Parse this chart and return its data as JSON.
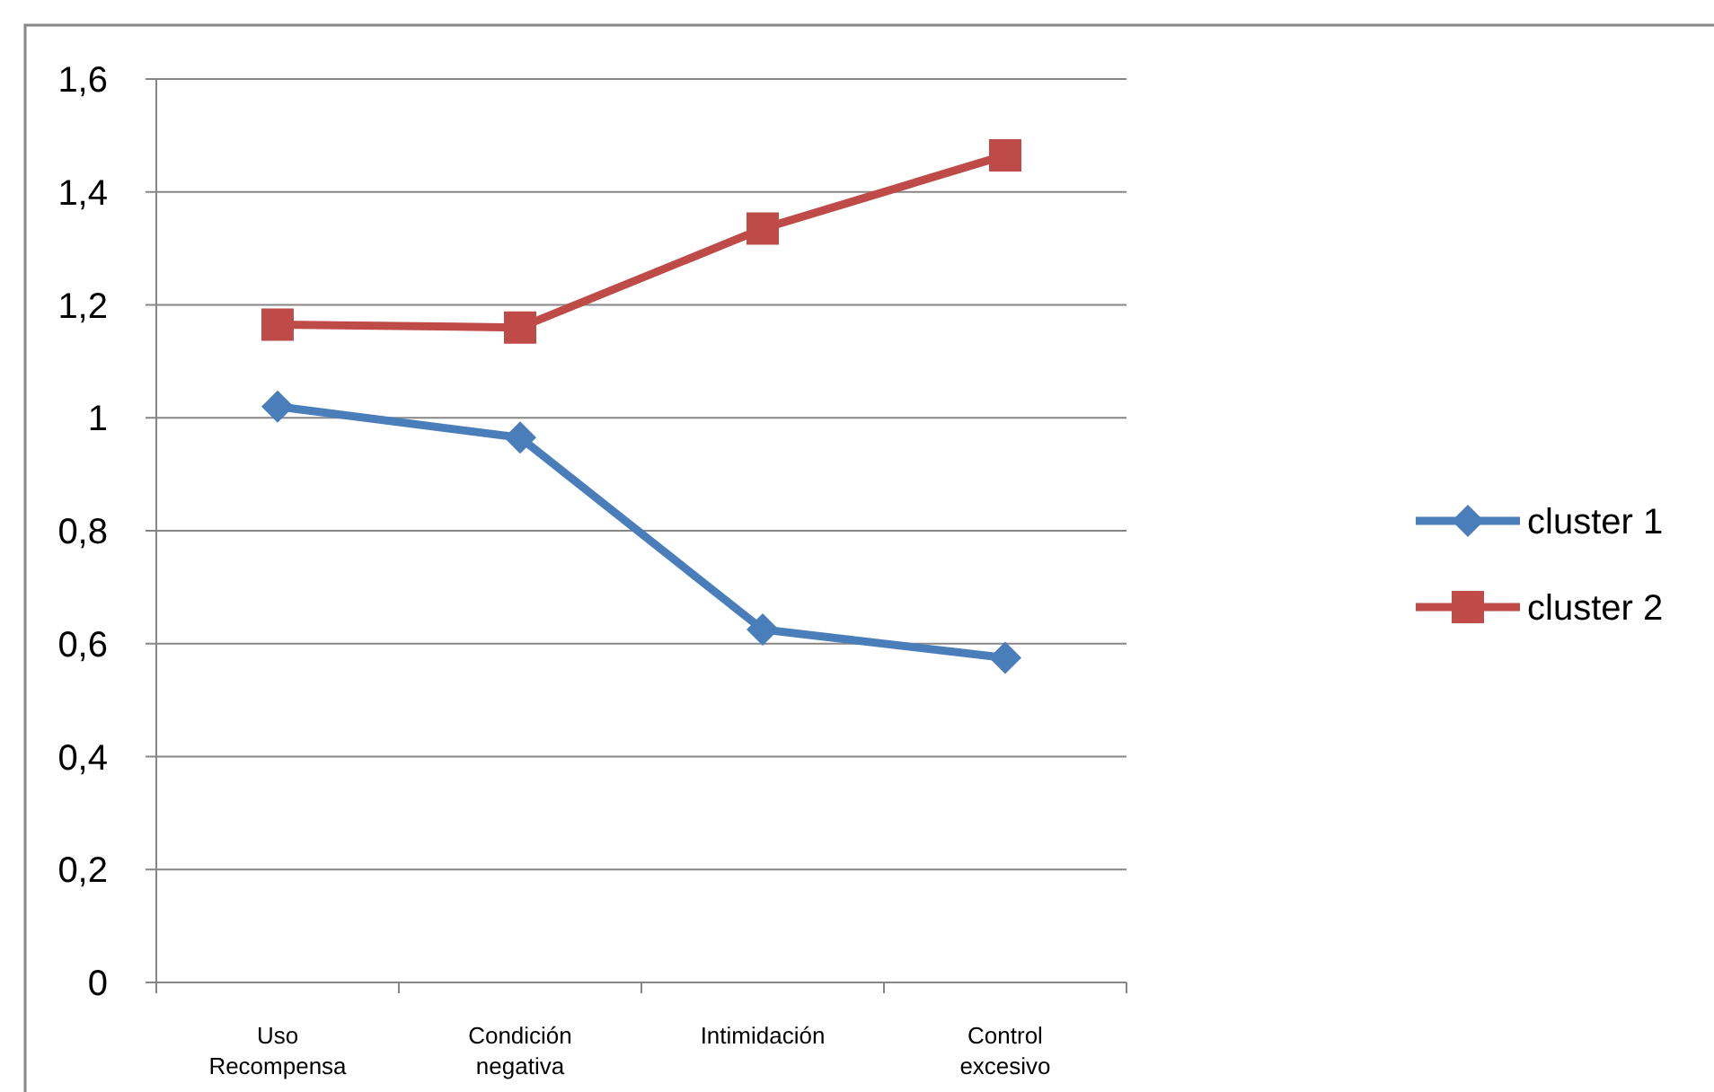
{
  "chart_data": {
    "type": "line",
    "categories": [
      "Uso Recompensa",
      "Condición negativa",
      "Intimidación",
      "Control excesivo"
    ],
    "series": [
      {
        "name": "cluster 1",
        "color": "#4a7ebb",
        "values": [
          1.02,
          0.965,
          0.625,
          0.575
        ],
        "marker": "diamond"
      },
      {
        "name": "cluster 2",
        "color": "#be4b48",
        "values": [
          1.165,
          1.16,
          1.335,
          1.465
        ],
        "marker": "square"
      }
    ],
    "ylim": [
      0,
      1.6
    ],
    "yticks": [
      0,
      {
        "value": 0.2,
        "label": "0,2"
      },
      {
        "value": 0.4,
        "label": "0,4"
      },
      {
        "value": 0.6,
        "label": "0,6"
      },
      {
        "value": 0.8,
        "label": "0,8"
      },
      1,
      {
        "value": 1.2,
        "label": "1,2"
      },
      {
        "value": 1.4,
        "label": "1,4"
      },
      {
        "value": 1.6,
        "label": "1,6"
      }
    ],
    "grid": "y",
    "legend": "right",
    "line_style": "solid"
  }
}
